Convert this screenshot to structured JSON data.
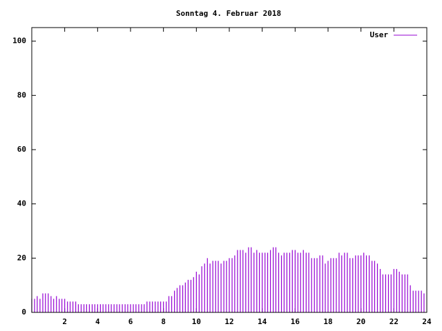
{
  "chart_data": {
    "type": "impulses",
    "title": "Sonntag 4. Februar 2018",
    "x": [
      0,
      0.17,
      0.33,
      0.5,
      0.67,
      0.83,
      1,
      1.17,
      1.33,
      1.5,
      1.67,
      1.83,
      2,
      2.17,
      2.33,
      2.5,
      2.67,
      2.83,
      3,
      3.17,
      3.33,
      3.5,
      3.67,
      3.83,
      4,
      4.17,
      4.33,
      4.5,
      4.67,
      4.83,
      5,
      5.17,
      5.33,
      5.5,
      5.67,
      5.83,
      6,
      6.17,
      6.33,
      6.5,
      6.67,
      6.83,
      7,
      7.17,
      7.33,
      7.5,
      7.67,
      7.83,
      8,
      8.17,
      8.33,
      8.5,
      8.67,
      8.83,
      9,
      9.17,
      9.33,
      9.5,
      9.67,
      9.83,
      10,
      10.17,
      10.33,
      10.5,
      10.67,
      10.83,
      11,
      11.17,
      11.33,
      11.5,
      11.67,
      11.83,
      12,
      12.17,
      12.33,
      12.5,
      12.67,
      12.83,
      13,
      13.17,
      13.33,
      13.5,
      13.67,
      13.83,
      14,
      14.17,
      14.33,
      14.5,
      14.67,
      14.83,
      15,
      15.17,
      15.33,
      15.5,
      15.67,
      15.83,
      16,
      16.17,
      16.33,
      16.5,
      16.67,
      16.83,
      17,
      17.17,
      17.33,
      17.5,
      17.67,
      17.83,
      18,
      18.17,
      18.33,
      18.5,
      18.67,
      18.83,
      19,
      19.17,
      19.33,
      19.5,
      19.67,
      19.83,
      20,
      20.17,
      20.33,
      20.5,
      20.67,
      20.83,
      21,
      21.17,
      21.33,
      21.5,
      21.67,
      21.83,
      22,
      22.17,
      22.33,
      22.5,
      22.67,
      22.83,
      23,
      23.17,
      23.33,
      23.5,
      23.67,
      23.83
    ],
    "series": [
      {
        "name": "User",
        "color": "#9400d3",
        "values": [
          5,
          5,
          6,
          5,
          7,
          7,
          7,
          6,
          5,
          6,
          5,
          5,
          5,
          4,
          4,
          4,
          4,
          3,
          3,
          3,
          3,
          3,
          3,
          3,
          3,
          3,
          3,
          3,
          3,
          3,
          3,
          3,
          3,
          3,
          3,
          3,
          3,
          3,
          3,
          3,
          3,
          3,
          4,
          4,
          4,
          4,
          4,
          4,
          4,
          4,
          6,
          6,
          8,
          9,
          10,
          10,
          11,
          12,
          12,
          13,
          15,
          14,
          17,
          18,
          20,
          18,
          19,
          19,
          19,
          18,
          19,
          19,
          20,
          20,
          21,
          23,
          23,
          23,
          22,
          24,
          24,
          22,
          23,
          22,
          22,
          22,
          22,
          23,
          24,
          24,
          22,
          21,
          22,
          22,
          22,
          23,
          23,
          22,
          22,
          23,
          22,
          22,
          20,
          20,
          20,
          21,
          21,
          18,
          19,
          20,
          20,
          20,
          22,
          21,
          22,
          22,
          20,
          20,
          21,
          21,
          21,
          22,
          21,
          21,
          19,
          19,
          18,
          16,
          14,
          14,
          14,
          14,
          16,
          16,
          15,
          14,
          14,
          14,
          10,
          8,
          8,
          8,
          8,
          7
        ]
      }
    ],
    "xlim": [
      0,
      24
    ],
    "ylim": [
      0,
      105
    ],
    "xticks": [
      2,
      4,
      6,
      8,
      10,
      12,
      14,
      16,
      18,
      20,
      22,
      24
    ],
    "yticks": [
      0,
      20,
      40,
      60,
      80,
      100
    ],
    "legend": "top-right"
  }
}
